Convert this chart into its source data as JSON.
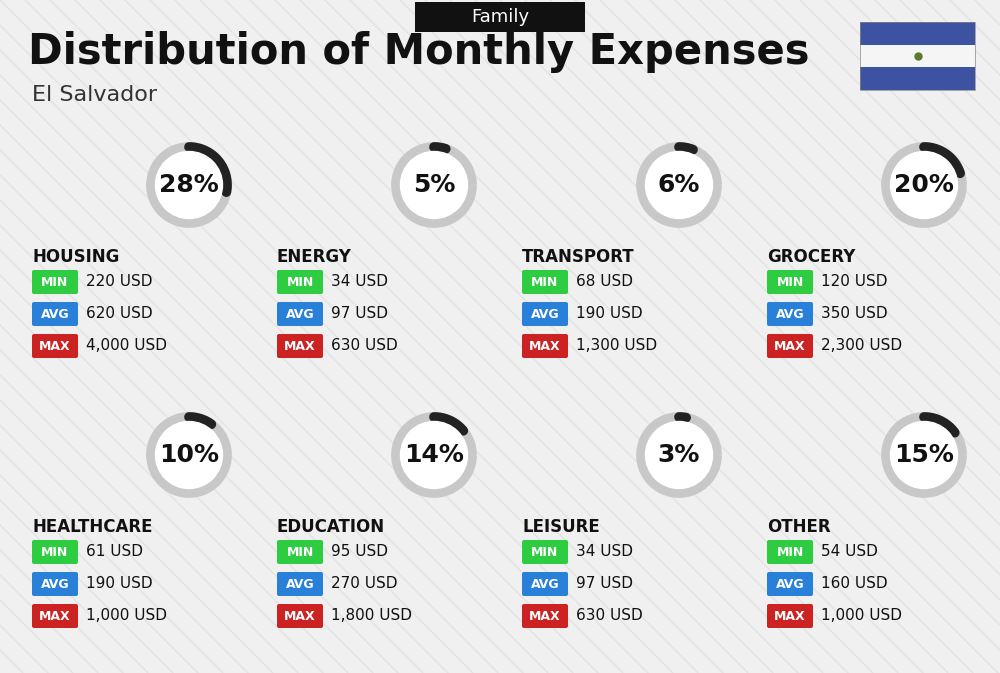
{
  "title": "Distribution of Monthly Expenses",
  "subtitle": "El Salvador",
  "family_label": "Family",
  "background_color": "#f0f0f0",
  "header_bg": "#111111",
  "categories": [
    {
      "name": "HOUSING",
      "pct": 28,
      "min": "220 USD",
      "avg": "620 USD",
      "max": "4,000 USD",
      "row": 0,
      "col": 0
    },
    {
      "name": "ENERGY",
      "pct": 5,
      "min": "34 USD",
      "avg": "97 USD",
      "max": "630 USD",
      "row": 0,
      "col": 1
    },
    {
      "name": "TRANSPORT",
      "pct": 6,
      "min": "68 USD",
      "avg": "190 USD",
      "max": "1,300 USD",
      "row": 0,
      "col": 2
    },
    {
      "name": "GROCERY",
      "pct": 20,
      "min": "120 USD",
      "avg": "350 USD",
      "max": "2,300 USD",
      "row": 0,
      "col": 3
    },
    {
      "name": "HEALTHCARE",
      "pct": 10,
      "min": "61 USD",
      "avg": "190 USD",
      "max": "1,000 USD",
      "row": 1,
      "col": 0
    },
    {
      "name": "EDUCATION",
      "pct": 14,
      "min": "95 USD",
      "avg": "270 USD",
      "max": "1,800 USD",
      "row": 1,
      "col": 1
    },
    {
      "name": "LEISURE",
      "pct": 3,
      "min": "34 USD",
      "avg": "97 USD",
      "max": "630 USD",
      "row": 1,
      "col": 2
    },
    {
      "name": "OTHER",
      "pct": 15,
      "min": "54 USD",
      "avg": "160 USD",
      "max": "1,000 USD",
      "row": 1,
      "col": 3
    }
  ],
  "min_color": "#2ecc40",
  "avg_color": "#2980d9",
  "max_color": "#cc2222",
  "arc_bg_color": "#c8c8c8",
  "arc_fg_color": "#222222",
  "arc_lw": 7,
  "arc_r": 38,
  "flag_blue": "#3d52a1",
  "flag_white": "#f5f5f5",
  "title_fontsize": 30,
  "subtitle_fontsize": 16,
  "family_fontsize": 13,
  "pct_fontsize": 18,
  "name_fontsize": 12,
  "badge_fontsize": 9,
  "value_fontsize": 11
}
